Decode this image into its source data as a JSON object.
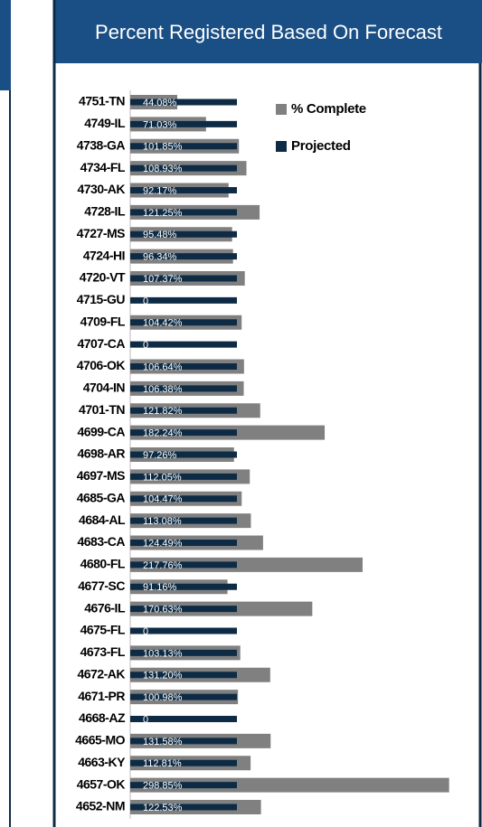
{
  "chart_data": {
    "type": "bar",
    "orientation": "horizontal",
    "title": "Percent Registered Based On Forecast",
    "categories": [
      "4751-TN",
      "4749-IL",
      "4738-GA",
      "4734-FL",
      "4730-AK",
      "4728-IL",
      "4727-MS",
      "4724-HI",
      "4720-VT",
      "4715-GU",
      "4709-FL",
      "4707-CA",
      "4706-OK",
      "4704-IN",
      "4701-TN",
      "4699-CA",
      "4698-AR",
      "4697-MS",
      "4685-GA",
      "4684-AL",
      "4683-CA",
      "4680-FL",
      "4677-SC",
      "4676-IL",
      "4675-FL",
      "4673-FL",
      "4672-AK",
      "4671-PR",
      "4668-AZ",
      "4665-MO",
      "4663-KY",
      "4657-OK",
      "4652-NM"
    ],
    "series": [
      {
        "name": "% Complete",
        "color": "#808080",
        "values": [
          44.08,
          71.03,
          101.85,
          108.93,
          92.17,
          121.25,
          95.48,
          96.34,
          107.37,
          0,
          104.42,
          0,
          106.64,
          106.38,
          121.82,
          182.24,
          97.26,
          112.05,
          104.47,
          113.08,
          124.49,
          217.76,
          91.16,
          170.63,
          0,
          103.13,
          131.2,
          100.98,
          0,
          131.58,
          112.81,
          298.85,
          122.53
        ],
        "value_labels": [
          "44.08%",
          "71.03%",
          "101.85%",
          "108.93%",
          "92.17%",
          "121.25%",
          "95.48%",
          "96.34%",
          "107.37%",
          "0",
          "104.42%",
          "0",
          "106.64%",
          "106.38%",
          "121.82%",
          "182.24%",
          "97.26%",
          "112.05%",
          "104.47%",
          "113.08%",
          "124.49%",
          "217.76%",
          "91.16%",
          "170.63%",
          "0",
          "103.13%",
          "131.20%",
          "100.98%",
          "0",
          "131.58%",
          "112.81%",
          "298.85%",
          "122.53%"
        ]
      },
      {
        "name": "Projected",
        "color": "#0d2b45",
        "values": [
          100,
          100,
          100,
          100,
          100,
          100,
          100,
          100,
          100,
          100,
          100,
          100,
          100,
          100,
          100,
          100,
          100,
          100,
          100,
          100,
          100,
          100,
          100,
          100,
          100,
          100,
          100,
          100,
          100,
          100,
          100,
          100,
          100
        ]
      }
    ],
    "xlim": [
      0,
      300
    ],
    "legend": "top-right"
  }
}
